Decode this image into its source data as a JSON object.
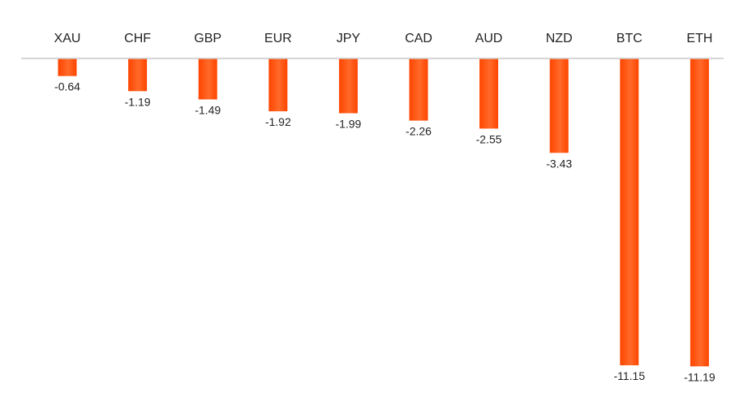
{
  "chart_data": {
    "type": "bar",
    "categories": [
      "XAU",
      "CHF",
      "GBP",
      "EUR",
      "JPY",
      "CAD",
      "AUD",
      "NZD",
      "BTC",
      "ETH"
    ],
    "values": [
      -0.64,
      -1.19,
      -1.49,
      -1.92,
      -1.99,
      -2.26,
      -2.55,
      -3.43,
      -11.15,
      -11.19
    ],
    "value_labels": [
      "-0.64",
      "-1.19",
      "-1.49",
      "-1.92",
      "-1.99",
      "-2.26",
      "-2.55",
      "-3.43",
      "-11.15",
      "-11.19"
    ],
    "category_axis_position": "top",
    "ylim": [
      -11.5,
      0
    ],
    "grid": false,
    "legend": "none",
    "bar_color": "#ff4500",
    "bar_gradient_end": "#ff6a2a",
    "axis_color": "#c8c8c8",
    "text_color": "#222222"
  }
}
